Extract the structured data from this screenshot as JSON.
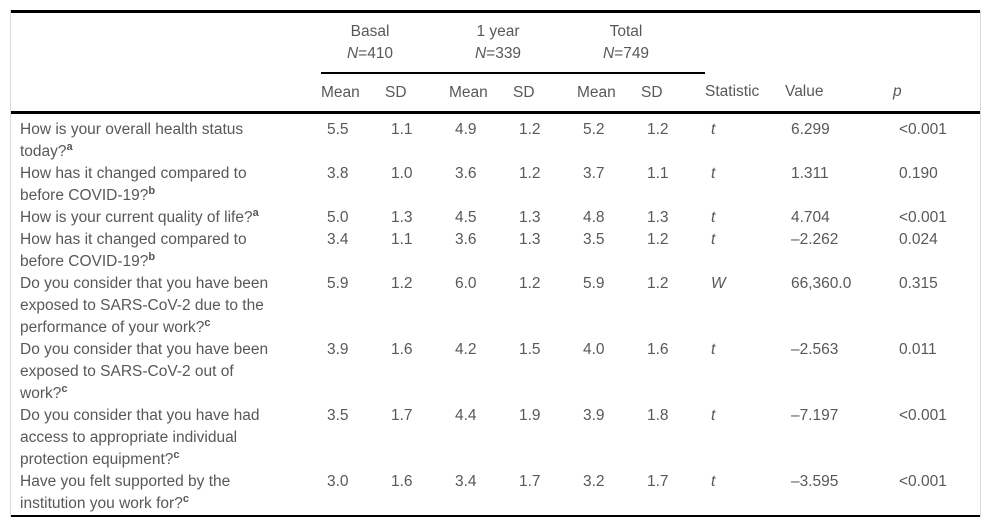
{
  "table": {
    "groups": [
      {
        "label": "Basal",
        "n_symbol": "N",
        "n_rest": "=410"
      },
      {
        "label": "1 year",
        "n_symbol": "N",
        "n_rest": "=339"
      },
      {
        "label": "Total",
        "n_symbol": "N",
        "n_rest": "=749"
      }
    ],
    "sub_headers": [
      "Mean",
      "SD",
      "Mean",
      "SD",
      "Mean",
      "SD"
    ],
    "stat_header": "Statistic",
    "value_header": "Value",
    "p_header": "p",
    "rows": [
      {
        "question": "How is your overall health status\ntoday?",
        "note": "a",
        "values": [
          "5.5",
          "1.1",
          "4.9",
          "1.2",
          "5.2",
          "1.2"
        ],
        "statistic": "t",
        "value": "6.299",
        "p": "<0.001"
      },
      {
        "question": "How has it changed compared to\nbefore COVID-19?",
        "note": "b",
        "values": [
          "3.8",
          "1.0",
          "3.6",
          "1.2",
          "3.7",
          "1.1"
        ],
        "statistic": "t",
        "value": "1.311",
        "p": "0.190"
      },
      {
        "question": "How is your current quality of life?",
        "note": "a",
        "values": [
          "5.0",
          "1.3",
          "4.5",
          "1.3",
          "4.8",
          "1.3"
        ],
        "statistic": "t",
        "value": "4.704",
        "p": "<0.001"
      },
      {
        "question": "How has it changed compared to\nbefore COVID-19?",
        "note": "b",
        "values": [
          "3.4",
          "1.1",
          "3.6",
          "1.3",
          "3.5",
          "1.2"
        ],
        "statistic": "t",
        "value": "–2.262",
        "p": "0.024"
      },
      {
        "question": "Do you consider that you have been\nexposed to SARS-CoV-2 due to the\nperformance of your work?",
        "note": "c",
        "values": [
          "5.9",
          "1.2",
          "6.0",
          "1.2",
          "5.9",
          "1.2"
        ],
        "statistic": "W",
        "value": "66,360.0",
        "p": "0.315"
      },
      {
        "question": "Do you consider that you have been\nexposed to SARS-CoV-2 out of\nwork?",
        "note": "c",
        "values": [
          "3.9",
          "1.6",
          "4.2",
          "1.5",
          "4.0",
          "1.6"
        ],
        "statistic": "t",
        "value": "–2.563",
        "p": "0.011"
      },
      {
        "question": "Do you consider that you have had\naccess to appropriate individual\nprotection equipment?",
        "note": "c",
        "values": [
          "3.5",
          "1.7",
          "4.4",
          "1.9",
          "3.9",
          "1.8"
        ],
        "statistic": "t",
        "value": "–7.197",
        "p": "<0.001"
      },
      {
        "question": "Have you felt supported by the\ninstitution you work for?",
        "note": "c",
        "values": [
          "3.0",
          "1.6",
          "3.4",
          "1.7",
          "3.2",
          "1.7"
        ],
        "statistic": "t",
        "value": "–3.595",
        "p": "<0.001"
      }
    ]
  }
}
